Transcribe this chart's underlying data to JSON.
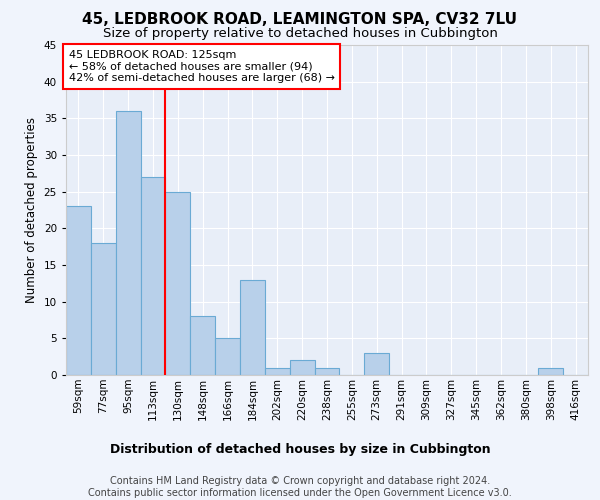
{
  "title": "45, LEDBROOK ROAD, LEAMINGTON SPA, CV32 7LU",
  "subtitle": "Size of property relative to detached houses in Cubbington",
  "xlabel": "Distribution of detached houses by size in Cubbington",
  "ylabel": "Number of detached properties",
  "categories": [
    "59sqm",
    "77sqm",
    "95sqm",
    "113sqm",
    "130sqm",
    "148sqm",
    "166sqm",
    "184sqm",
    "202sqm",
    "220sqm",
    "238sqm",
    "255sqm",
    "273sqm",
    "291sqm",
    "309sqm",
    "327sqm",
    "345sqm",
    "362sqm",
    "380sqm",
    "398sqm",
    "416sqm"
  ],
  "values": [
    23,
    18,
    36,
    27,
    25,
    8,
    5,
    13,
    1,
    2,
    1,
    0,
    3,
    0,
    0,
    0,
    0,
    0,
    0,
    1,
    0
  ],
  "bar_color": "#b8d0ea",
  "bar_edge_color": "#6aaad4",
  "red_line_index": 3.5,
  "ylim": [
    0,
    45
  ],
  "yticks": [
    0,
    5,
    10,
    15,
    20,
    25,
    30,
    35,
    40,
    45
  ],
  "annotation_line1": "45 LEDBROOK ROAD: 125sqm",
  "annotation_line2": "← 58% of detached houses are smaller (94)",
  "annotation_line3": "42% of semi-detached houses are larger (68) →",
  "footer_line1": "Contains HM Land Registry data © Crown copyright and database right 2024.",
  "footer_line2": "Contains public sector information licensed under the Open Government Licence v3.0.",
  "plot_bg_color": "#e8eef8",
  "fig_bg_color": "#f0f4fc",
  "grid_color": "#ffffff",
  "title_fontsize": 11,
  "subtitle_fontsize": 9.5,
  "ylabel_fontsize": 8.5,
  "xlabel_fontsize": 9,
  "tick_fontsize": 7.5,
  "annotation_fontsize": 8,
  "footer_fontsize": 7
}
